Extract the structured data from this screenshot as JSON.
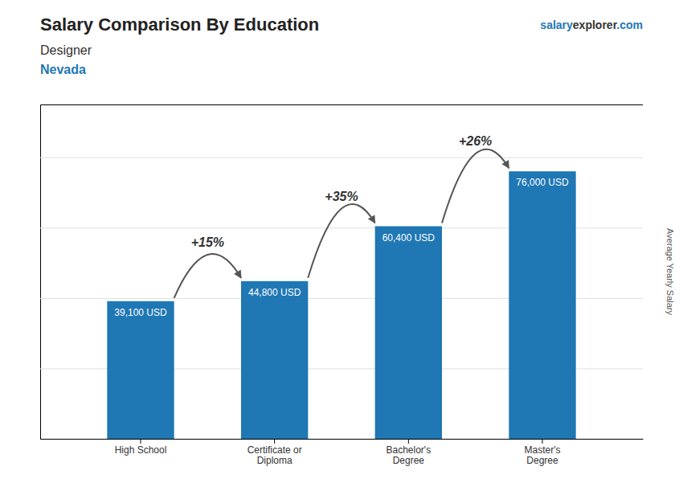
{
  "chart_data": {
    "type": "bar",
    "title": "Salary Comparison By Education",
    "subtitle": [
      "Designer",
      "Nevada"
    ],
    "brand": [
      "salary",
      "explorer",
      ".com"
    ],
    "ylabel": "Average Yearly Salary",
    "categories": [
      "High School",
      "Certificate or\nDiploma",
      "Bachelor's\nDegree",
      "Master's\nDegree"
    ],
    "values": [
      39100,
      44800,
      60400,
      76000
    ],
    "value_labels": [
      "39,100 USD",
      "44,800 USD",
      "60,400 USD",
      "76,000 USD"
    ],
    "annotations": [
      "+15%",
      "+35%",
      "+26%"
    ],
    "ylim": [
      0,
      95000
    ],
    "yticks": [
      20000,
      40000,
      60000,
      80000
    ],
    "grid": true,
    "data_labels": true,
    "tick_labels": "x"
  }
}
